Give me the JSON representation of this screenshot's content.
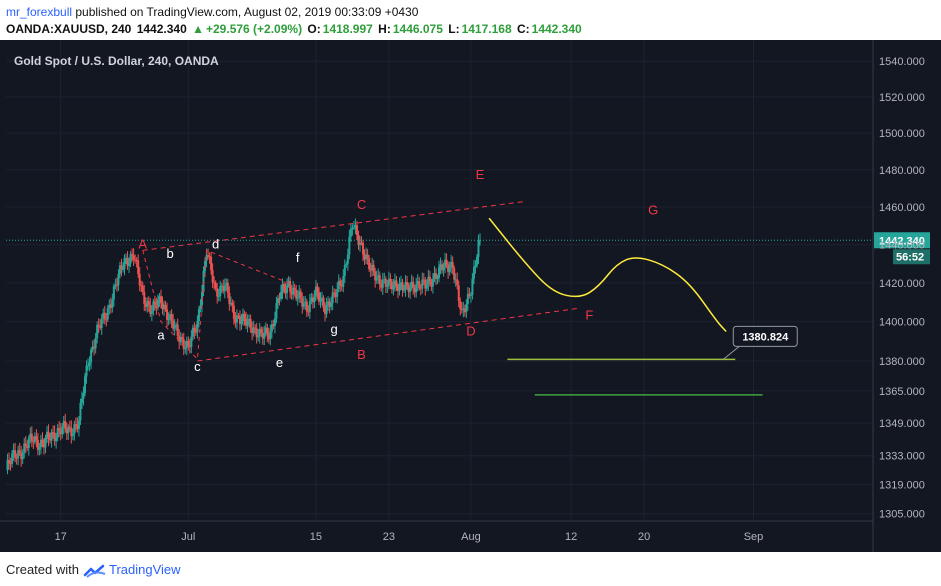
{
  "header": {
    "author": "mr_forexbull",
    "published_text": " published on TradingView.com, August 02, 2019 00:33:09 +0430",
    "symbol": "OANDA:XAUUSD, 240",
    "last": "1442.340",
    "change": "+29.576 (+2.09%)",
    "open_label": "O:",
    "open": "1418.997",
    "high_label": "H:",
    "high": "1446.075",
    "low_label": "L:",
    "low": "1417.168",
    "close_label": "C:",
    "close": "1442.340"
  },
  "footer": {
    "created_with": "Created with",
    "brand": "TradingView"
  },
  "chart_data": {
    "type": "candlestick",
    "title": "Gold Spot / U.S. Dollar, 240, OANDA",
    "y_axis": {
      "ticks": [
        1540,
        1520,
        1500,
        1480,
        1460,
        1440,
        1420,
        1400,
        1380,
        1365,
        1349,
        1333,
        1319,
        1305
      ],
      "tick_labels": [
        "1540.000",
        "1520.000",
        "1500.000",
        "1480.000",
        "1460.000",
        "1440.000",
        "1420.000",
        "1400.000",
        "1380.000",
        "1365.000",
        "1349.000",
        "1333.000",
        "1319.000",
        "1305.000"
      ],
      "range": [
        1302,
        1552
      ],
      "scale": "log"
    },
    "x_axis": {
      "range": [
        "2019-06-11",
        "2019-09-14"
      ],
      "ticks": [
        {
          "date": "2019-06-17",
          "label": "17"
        },
        {
          "date": "2019-07-01",
          "label": "Jul"
        },
        {
          "date": "2019-07-15",
          "label": "15"
        },
        {
          "date": "2019-07-23",
          "label": "23"
        },
        {
          "date": "2019-08-01",
          "label": "Aug"
        },
        {
          "date": "2019-08-12",
          "label": "12"
        },
        {
          "date": "2019-08-20",
          "label": "20"
        },
        {
          "date": "2019-09-01",
          "label": "Sep"
        }
      ]
    },
    "price_trace": [
      [
        "2019-06-11",
        1326
      ],
      [
        "2019-06-12",
        1334
      ],
      [
        "2019-06-13",
        1336
      ],
      [
        "2019-06-14",
        1342
      ],
      [
        "2019-06-15",
        1338
      ],
      [
        "2019-06-16",
        1343
      ],
      [
        "2019-06-17",
        1346
      ],
      [
        "2019-06-18",
        1345
      ],
      [
        "2019-06-19",
        1350
      ],
      [
        "2019-06-20",
        1380
      ],
      [
        "2019-06-21",
        1395
      ],
      [
        "2019-06-22",
        1404
      ],
      [
        "2019-06-23",
        1418
      ],
      [
        "2019-06-24",
        1432
      ],
      [
        "2019-06-25",
        1434
      ],
      [
        "2019-06-26",
        1414
      ],
      [
        "2019-06-27",
        1405
      ],
      [
        "2019-06-28",
        1412
      ],
      [
        "2019-06-29",
        1400
      ],
      [
        "2019-06-30",
        1393
      ],
      [
        "2019-07-01",
        1386
      ],
      [
        "2019-07-02",
        1400
      ],
      [
        "2019-07-03",
        1436
      ],
      [
        "2019-07-04",
        1416
      ],
      [
        "2019-07-05",
        1418
      ],
      [
        "2019-07-06",
        1404
      ],
      [
        "2019-07-07",
        1400
      ],
      [
        "2019-07-08",
        1398
      ],
      [
        "2019-07-09",
        1392
      ],
      [
        "2019-07-10",
        1395
      ],
      [
        "2019-07-11",
        1413
      ],
      [
        "2019-07-12",
        1420
      ],
      [
        "2019-07-13",
        1412
      ],
      [
        "2019-07-14",
        1408
      ],
      [
        "2019-07-15",
        1414
      ],
      [
        "2019-07-16",
        1408
      ],
      [
        "2019-07-17",
        1412
      ],
      [
        "2019-07-18",
        1424
      ],
      [
        "2019-07-19",
        1450
      ],
      [
        "2019-07-20",
        1440
      ],
      [
        "2019-07-21",
        1426
      ],
      [
        "2019-07-22",
        1422
      ],
      [
        "2019-07-23",
        1418
      ],
      [
        "2019-07-24",
        1420
      ],
      [
        "2019-07-25",
        1416
      ],
      [
        "2019-07-26",
        1420
      ],
      [
        "2019-07-27",
        1418
      ],
      [
        "2019-07-28",
        1424
      ],
      [
        "2019-07-29",
        1428
      ],
      [
        "2019-07-30",
        1430
      ],
      [
        "2019-07-31",
        1402
      ],
      [
        "2019-08-01",
        1418
      ],
      [
        "2019-08-02",
        1442.34
      ]
    ],
    "current_price": {
      "value": 1442.34,
      "label": "1442.340",
      "countdown": "56:52"
    },
    "wave_points": [
      {
        "label": "A",
        "date": "2019-06-26",
        "price": 1438
      },
      {
        "label": "B",
        "date": "2019-07-20",
        "price": 1381
      },
      {
        "label": "C",
        "date": "2019-07-20",
        "price": 1459
      },
      {
        "label": "D",
        "date": "2019-08-01",
        "price": 1393
      },
      {
        "label": "E",
        "date": "2019-08-02",
        "price": 1475
      },
      {
        "label": "F",
        "date": "2019-08-14",
        "price": 1401
      },
      {
        "label": "G",
        "date": "2019-08-21",
        "price": 1456
      },
      {
        "label": "a",
        "date": "2019-06-28",
        "price": 1391
      },
      {
        "label": "b",
        "date": "2019-06-29",
        "price": 1433
      },
      {
        "label": "c",
        "date": "2019-07-02",
        "price": 1375
      },
      {
        "label": "d",
        "date": "2019-07-04",
        "price": 1438
      },
      {
        "label": "e",
        "date": "2019-07-11",
        "price": 1377
      },
      {
        "label": "f",
        "date": "2019-07-13",
        "price": 1431
      },
      {
        "label": "g",
        "date": "2019-07-17",
        "price": 1394
      }
    ],
    "trendlines": [
      {
        "from": [
          "2019-06-26",
          1437
        ],
        "to": [
          "2019-08-07",
          1463
        ]
      },
      {
        "from": [
          "2019-07-02",
          1380
        ],
        "to": [
          "2019-08-13",
          1407
        ]
      }
    ],
    "projection": [
      [
        "2019-08-03",
        1454
      ],
      [
        "2019-08-07",
        1430
      ],
      [
        "2019-08-10",
        1415
      ],
      [
        "2019-08-13",
        1412
      ],
      [
        "2019-08-15",
        1418
      ],
      [
        "2019-08-17",
        1430
      ],
      [
        "2019-08-19",
        1434
      ],
      [
        "2019-08-22",
        1430
      ],
      [
        "2019-08-25",
        1420
      ],
      [
        "2019-08-28",
        1400
      ],
      [
        "2019-08-29",
        1395
      ]
    ],
    "horizontal_levels": [
      {
        "price": 1380.824,
        "from": "2019-08-05",
        "to": "2019-08-30",
        "label": "1380.824",
        "color": "#9bbf3a"
      },
      {
        "price": 1363,
        "from": "2019-08-08",
        "to": "2019-09-02",
        "color": "#3fa33f"
      }
    ],
    "colors": {
      "background": "#131722",
      "up": "#26a69a",
      "down": "#ef5350",
      "wave": "#f23645",
      "projection": "#ffeb3b"
    }
  }
}
